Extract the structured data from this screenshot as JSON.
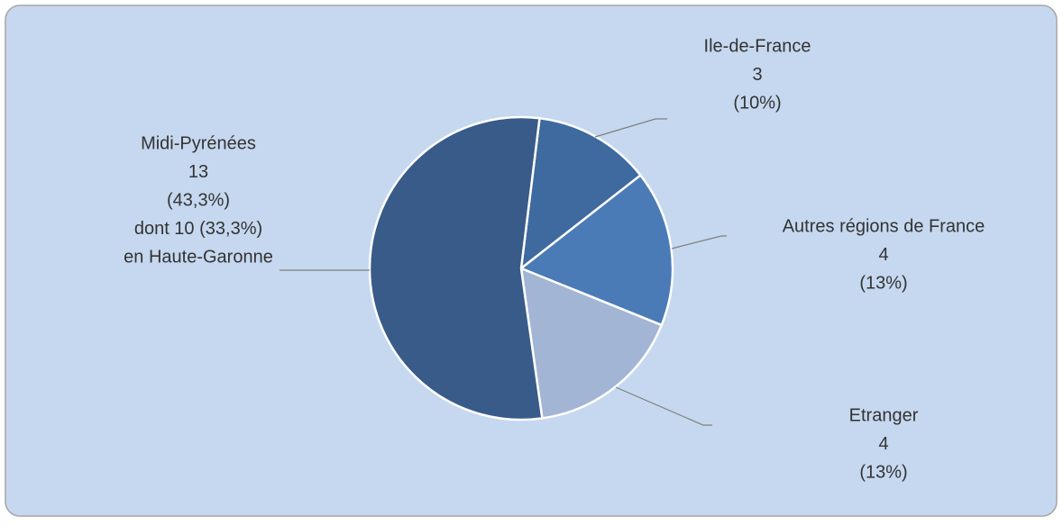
{
  "chart_data": {
    "type": "pie",
    "categories": [
      "Ile-de-France",
      "Autres régions de France",
      "Etranger",
      "Midi-Pyrénées"
    ],
    "values": [
      3,
      4,
      4,
      13
    ],
    "percent_labels": [
      "(10%)",
      "(13%)",
      "(13%)",
      "(43,3%)"
    ],
    "annotations": [
      [],
      [],
      [],
      [
        "dont 10 (33,3%)",
        "en Haute-Garonne"
      ]
    ],
    "colors": [
      "#3f6a9f",
      "#4a7bb6",
      "#a3b5d4",
      "#385b89"
    ]
  }
}
